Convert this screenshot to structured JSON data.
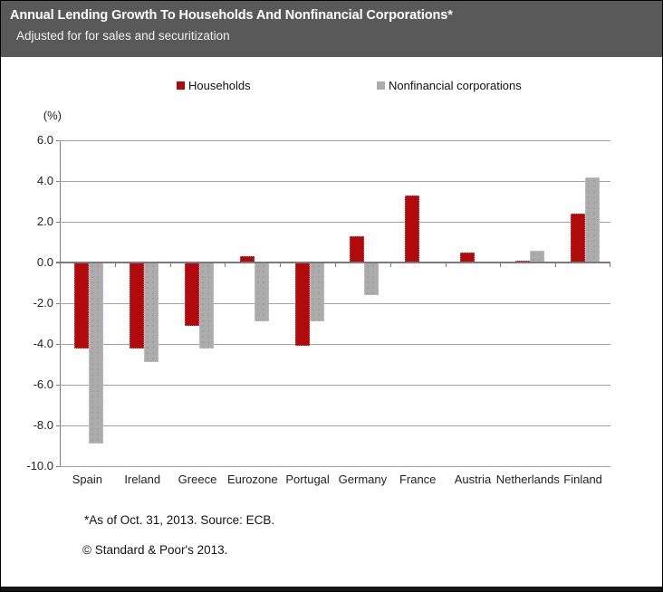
{
  "header": {
    "title": "Annual Lending Growth To Households And Nonfinancial Corporations*",
    "subtitle": "Adjusted for for sales and securitization"
  },
  "legend": [
    {
      "label": "Households",
      "color": "#B00A0D"
    },
    {
      "label": "Nonfinancial corporations",
      "color": "#ACACAC"
    }
  ],
  "axis": {
    "unit_label": "(%)"
  },
  "footnotes": {
    "source": "*As of Oct. 31, 2013. Source: ECB.",
    "copyright": "© Standard & Poor's 2013."
  },
  "chart_data": {
    "type": "bar",
    "title": "Annual Lending Growth To Households And Nonfinancial Corporations*",
    "subtitle": "Adjusted for for sales and securitization",
    "categories": [
      "Spain",
      "Ireland",
      "Greece",
      "Eurozone",
      "Portugal",
      "Germany",
      "France",
      "Austria",
      "Netherlands",
      "Finland"
    ],
    "series": [
      {
        "name": "Households",
        "color": "#B00A0D",
        "values": [
          -4.2,
          -4.2,
          -3.1,
          0.3,
          -4.1,
          1.3,
          3.3,
          0.5,
          0.1,
          2.4
        ]
      },
      {
        "name": "Nonfinancial corporations",
        "color": "#ACACAC",
        "values": [
          -8.9,
          -4.9,
          -4.2,
          -2.9,
          -2.9,
          -1.6,
          0.0,
          0.0,
          0.6,
          4.2
        ]
      }
    ],
    "xlabel": "",
    "ylabel": "(%)",
    "ylim": [
      -10,
      6
    ],
    "yticks": [
      "6.0",
      "4.0",
      "2.0",
      "0.0",
      "-2.0",
      "-4.0",
      "-6.0",
      "-8.0",
      "-10.0"
    ],
    "grid": true,
    "legend_position": "top"
  }
}
